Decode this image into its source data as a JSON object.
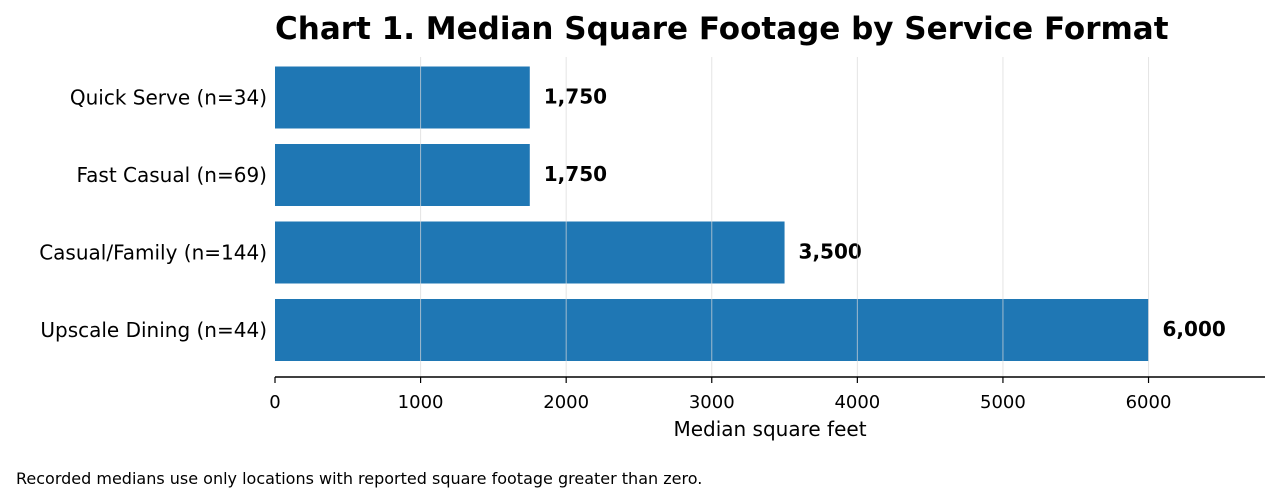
{
  "chart_data": {
    "type": "bar",
    "orientation": "horizontal",
    "title": "Chart 1. Median Square Footage by Service Format",
    "xlabel": "Median square feet",
    "ylabel": "",
    "categories": [
      "Quick Serve (n=34)",
      "Fast Casual (n=69)",
      "Casual/Family (n=144)",
      "Upscale Dining (n=44)"
    ],
    "values": [
      1750,
      1750,
      3500,
      6000
    ],
    "value_labels": [
      "1,750",
      "1,750",
      "3,500",
      "6,000"
    ],
    "xlim": [
      0,
      6800
    ],
    "xticks": [
      0,
      1000,
      2000,
      3000,
      4000,
      5000,
      6000
    ],
    "grid": "vertical",
    "legend": "none",
    "bar_color": "#1f77b4"
  },
  "footnote": "Recorded medians use only locations with reported square footage greater than zero."
}
